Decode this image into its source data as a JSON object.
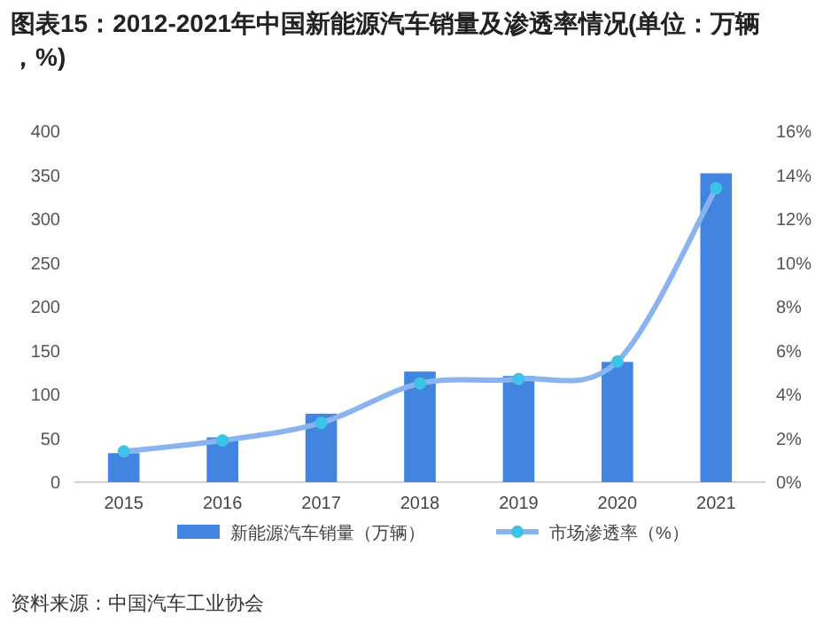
{
  "chart_data": {
    "type": "bar",
    "title": "图表15：2012-2021年中国新能源汽车销量及渗透率情况(单位：万辆，%)",
    "categories": [
      "2015",
      "2016",
      "2017",
      "2018",
      "2019",
      "2020",
      "2021"
    ],
    "series": [
      {
        "name": "新能源汽车销量（万辆）",
        "color": "#4285e0",
        "values": [
          33,
          51,
          78,
          126,
          121,
          137,
          352
        ]
      },
      {
        "name": "市场渗透率（%）",
        "type": "line",
        "axis": "y2",
        "color": "#8ab4f0",
        "marker": "circle",
        "values": [
          1.4,
          1.9,
          2.7,
          4.5,
          4.7,
          5.5,
          13.4
        ]
      }
    ],
    "ylim": [
      0,
      400
    ],
    "yticks": [
      0,
      50,
      100,
      150,
      200,
      250,
      300,
      350,
      400
    ],
    "y2lim": [
      0,
      16
    ],
    "y2ticks": [
      {
        "value": 0,
        "label": "0%"
      },
      {
        "value": 2,
        "label": "2%"
      },
      {
        "value": 4,
        "label": "4%"
      },
      {
        "value": 6,
        "label": "6%"
      },
      {
        "value": 8,
        "label": "8%"
      },
      {
        "value": 10,
        "label": "10%"
      },
      {
        "value": 12,
        "label": "12%"
      },
      {
        "value": 14,
        "label": "14%"
      },
      {
        "value": 16,
        "label": "16%"
      }
    ],
    "legend": "bottom",
    "grid": false,
    "annotations": [
      "资料来源：中国汽车工业协会"
    ]
  }
}
